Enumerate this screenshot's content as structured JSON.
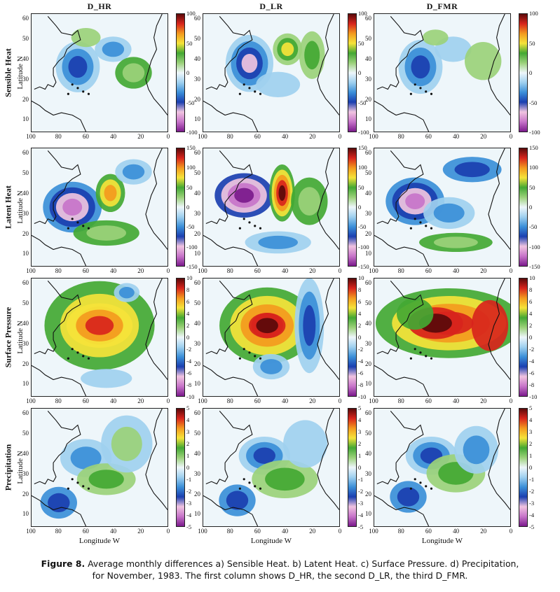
{
  "columns": [
    "D_HR",
    "D_LR",
    "D_FMR"
  ],
  "rows": [
    {
      "title": "Sensible Heat",
      "ylabel": "Latitude N",
      "cbar_ticks": [
        "100",
        "50",
        "0",
        "-50",
        "-100"
      ],
      "variant": 0
    },
    {
      "title": "Latent Heat",
      "ylabel": "Latitude N",
      "cbar_ticks": [
        "150",
        "100",
        "50",
        "0",
        "-50",
        "-100",
        "-150"
      ],
      "variant": 1
    },
    {
      "title": "Surface Pressure",
      "ylabel": "Latitude N",
      "cbar_ticks": [
        "10",
        "8",
        "6",
        "4",
        "2",
        "0",
        "-2",
        "-4",
        "-6",
        "-8",
        "-10"
      ],
      "variant": 2
    },
    {
      "title": "Precipitation",
      "ylabel": "Latitude N",
      "cbar_ticks": [
        "5",
        "4",
        "3",
        "2",
        "1",
        "0",
        "-1",
        "-2",
        "-3",
        "-4",
        "-5"
      ],
      "variant": 3
    }
  ],
  "y_ticks": [
    "60",
    "50",
    "40",
    "30",
    "20",
    "10"
  ],
  "x_ticks": [
    "100",
    "80",
    "60",
    "40",
    "20",
    "0"
  ],
  "xlabel": "Longitude W",
  "caption": {
    "label": "Figure 8.",
    "line1": " Average monthly differences a) Sensible Heat. b) Latent Heat. c) Surface Pressure. d) Precipitation,",
    "line2": "for November, 1983. The first column shows D_HR, the second D_LR, the third D_FMR."
  },
  "colorscale": [
    "#7b1a8c",
    "#c774c9",
    "#f0c4e0",
    "#1b3fb0",
    "#3b8fd8",
    "#9fd0ef",
    "#eef6fa",
    "#9bd17a",
    "#43a833",
    "#f5e33a",
    "#f39a1e",
    "#d8241c",
    "#5a0a0a"
  ]
}
